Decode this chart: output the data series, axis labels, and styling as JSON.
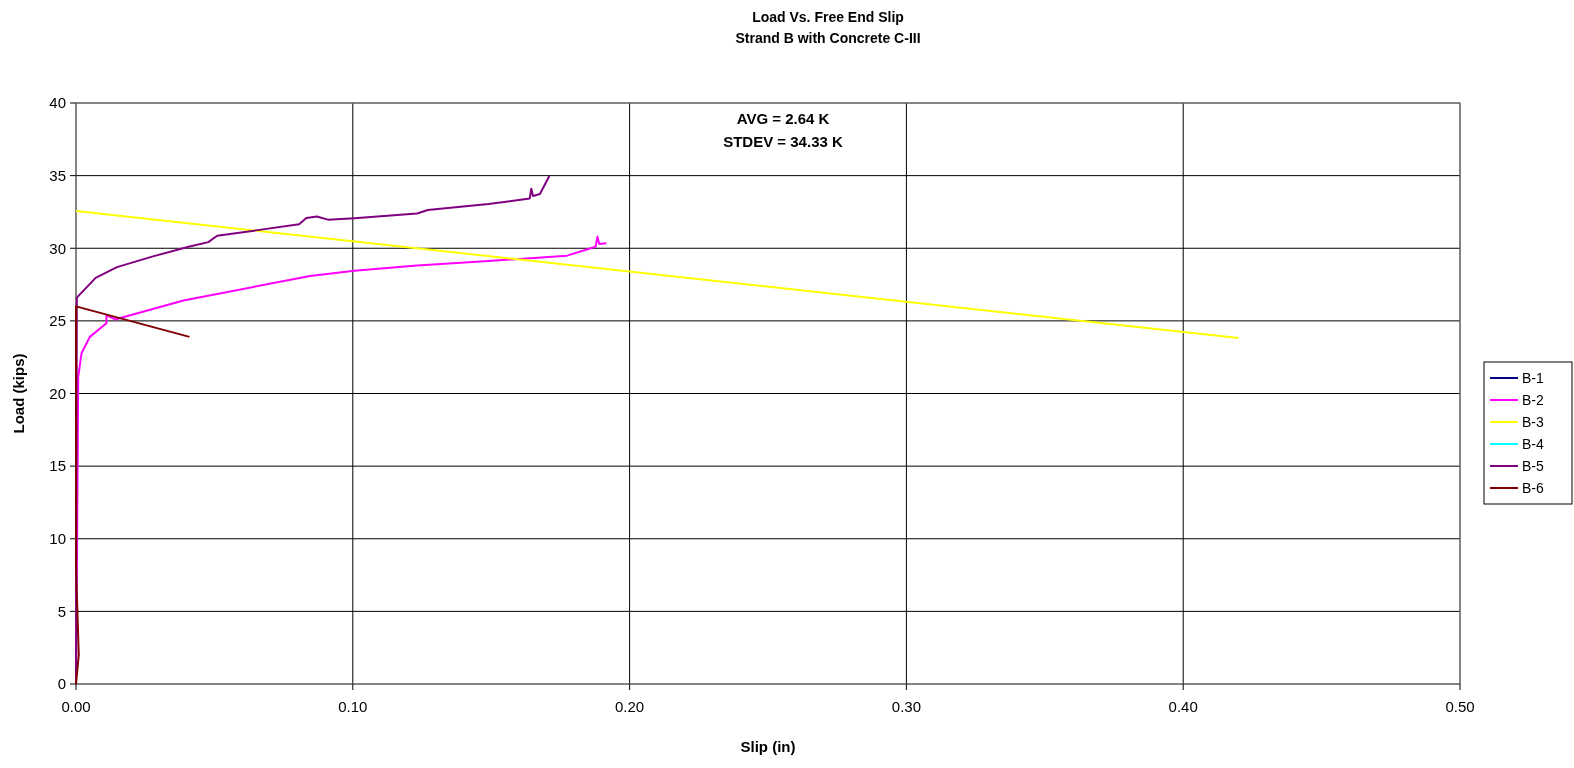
{
  "chart_data": {
    "type": "line",
    "title": "Load Vs. Free End Slip",
    "subtitle": "Strand B with Concrete C-III",
    "xlabel": "Slip (in)",
    "ylabel": "Load (kips)",
    "annotations": [
      "AVG = 2.64 K",
      "STDEV = 34.33 K"
    ],
    "xlim": [
      0,
      0.5
    ],
    "xticks": [
      {
        "value": 0,
        "label": "0.00"
      },
      {
        "value": 0.1,
        "label": "0.10"
      },
      {
        "value": 0.2,
        "label": "0.20"
      },
      {
        "value": 0.3,
        "label": "0.30"
      },
      {
        "value": 0.4,
        "label": "0.40"
      },
      {
        "value": 0.5,
        "label": "0.50"
      }
    ],
    "ylim": [
      0,
      40
    ],
    "yticks": [
      0,
      5,
      10,
      15,
      20,
      25,
      30,
      35,
      40
    ],
    "grid": true,
    "legend": "right",
    "marker": "none",
    "line_style": "solid",
    "series": [
      {
        "name": "B-1",
        "color": "#000080"
      },
      {
        "name": "B-2",
        "color": "#ff00ff",
        "x": [
          0,
          0.0004,
          0.0008,
          0.002,
          0.005,
          0.011,
          0.011,
          0.0141,
          0.0388,
          0.0845,
          0.1006,
          0.1232,
          0.149,
          0.1774,
          0.1877,
          0.1884,
          0.189,
          0.1916
        ],
        "values": [
          0,
          10,
          21.15,
          22.77,
          23.9,
          24.83,
          25.4,
          25.1,
          26.4,
          28.09,
          28.45,
          28.82,
          29.12,
          29.49,
          30.1,
          30.8,
          30.3,
          30.35
        ]
      },
      {
        "name": "B-3",
        "color": "#ffff00",
        "x": [
          0,
          0.42
        ],
        "values": [
          32.56,
          23.82
        ]
      },
      {
        "name": "B-4",
        "color": "#00ffff"
      },
      {
        "name": "B-5",
        "color": "#800080",
        "x": [
          0,
          0.0003,
          0.0071,
          0.0148,
          0.0278,
          0.0407,
          0.0478,
          0.051,
          0.065,
          0.0806,
          0.0832,
          0.087,
          0.091,
          0.1006,
          0.1232,
          0.1271,
          0.149,
          0.1639,
          0.1645,
          0.1651,
          0.1676,
          0.171
        ],
        "values": [
          0,
          26.6,
          27.96,
          28.7,
          29.44,
          30.1,
          30.42,
          30.86,
          31.23,
          31.65,
          32.09,
          32.19,
          31.97,
          32.07,
          32.39,
          32.63,
          33.05,
          33.42,
          34.1,
          33.6,
          33.73,
          34.97
        ]
      },
      {
        "name": "B-6",
        "color": "#800000",
        "x": [
          0,
          0.001,
          0,
          0,
          0.041
        ],
        "values": [
          0,
          2,
          8,
          26,
          23.9
        ]
      }
    ]
  }
}
